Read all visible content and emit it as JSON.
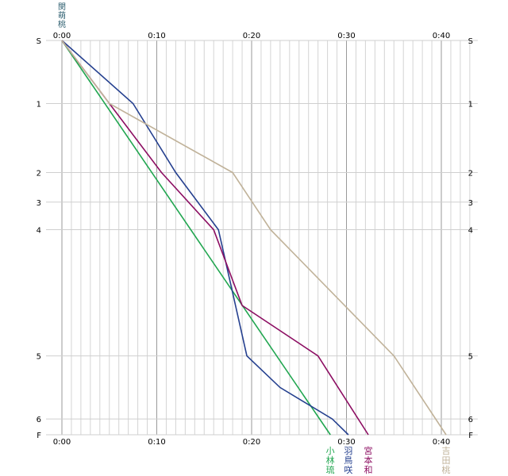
{
  "chart_data": {
    "type": "line",
    "title": "",
    "xlabel": "",
    "ylabel": "",
    "x_unit": "minutes",
    "xlim": [
      0,
      43
    ],
    "x_ticks": [
      {
        "value": 0,
        "label": "0:00"
      },
      {
        "value": 10,
        "label": "0:10"
      },
      {
        "value": 20,
        "label": "0:20"
      },
      {
        "value": 30,
        "label": "0:30"
      },
      {
        "value": 40,
        "label": "0:40"
      }
    ],
    "y_ticks": [
      {
        "label": "S"
      },
      {
        "label": "1"
      },
      {
        "label": "2"
      },
      {
        "label": "3"
      },
      {
        "label": "4"
      },
      {
        "label": "5"
      },
      {
        "label": "6"
      },
      {
        "label": "F"
      }
    ],
    "y_scale": "cumulative course distance",
    "y_positions": [
      0,
      0.16,
      0.335,
      0.41,
      0.48,
      0.8,
      0.96,
      1.0
    ],
    "grid": true,
    "top_labels": [
      "閔",
      "萌",
      "桃"
    ],
    "series": [
      {
        "name": "小林琉",
        "color": "#21a650",
        "x": [
          0,
          28.3
        ]
      },
      {
        "name": "羽鳥咲",
        "color": "#25408f",
        "x": [
          0,
          7.5,
          12,
          16.5,
          19.5,
          23,
          28.5,
          30.2
        ]
      },
      {
        "name": "宮本和",
        "color": "#8c0e62",
        "x": [
          0,
          5,
          10.5,
          16,
          19,
          27,
          32.3
        ]
      },
      {
        "name": "吉田桃",
        "color": "#c0b299",
        "x": [
          0,
          5,
          18,
          22,
          35,
          40.5
        ]
      }
    ],
    "series_y_index": [
      [
        0,
        7
      ],
      [
        0,
        1,
        2,
        4,
        5,
        5.5,
        6,
        7
      ],
      [
        0,
        1,
        2,
        4,
        4.6,
        5,
        7
      ],
      [
        0,
        1,
        2,
        4,
        5,
        7
      ]
    ]
  }
}
